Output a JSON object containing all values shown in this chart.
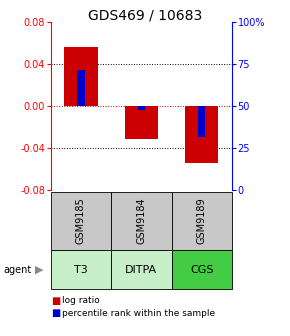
{
  "title": "GDS469 / 10683",
  "samples": [
    "GSM9185",
    "GSM9184",
    "GSM9189"
  ],
  "agents": [
    "T3",
    "DITPA",
    "CGS"
  ],
  "log_ratios": [
    0.056,
    -0.032,
    -0.054
  ],
  "percentile_ranks_val": [
    0.034,
    -0.004,
    -0.03
  ],
  "ylim_left": [
    -0.08,
    0.08
  ],
  "ylim_right": [
    0,
    100
  ],
  "yticks_left": [
    -0.08,
    -0.04,
    0,
    0.04,
    0.08
  ],
  "yticks_right": [
    0,
    25,
    50,
    75,
    100
  ],
  "bar_color": "#cc0000",
  "pct_color": "#0000cc",
  "zero_line_color": "#cc0000",
  "sample_box_color": "#c8c8c8",
  "agent_colors": [
    "#c8f0c8",
    "#c8f0c8",
    "#44cc44"
  ],
  "title_fontsize": 10,
  "tick_fontsize": 7,
  "bar_width": 0.55,
  "pct_bar_width": 0.12,
  "legend_fontsize": 6.5,
  "agent_fontsize": 8,
  "sample_fontsize": 7
}
